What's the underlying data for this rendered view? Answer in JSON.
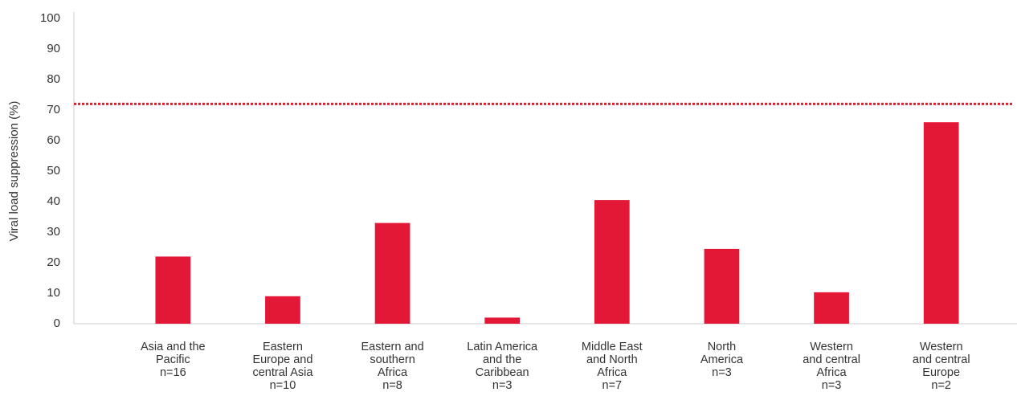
{
  "chart_data": {
    "type": "bar",
    "y_label": "Viral load suppression (%)",
    "categories": [
      [
        "Asia and the",
        "Pacific",
        "n=16"
      ],
      [
        "Eastern",
        "Europe and",
        "central Asia",
        "n=10"
      ],
      [
        "Eastern and",
        "southern",
        "Africa",
        "n=8"
      ],
      [
        "Latin America",
        "and the",
        "Caribbean",
        "n=3"
      ],
      [
        "Middle East",
        "and North",
        "Africa",
        "n=7"
      ],
      [
        "North",
        "America",
        "n=3"
      ],
      [
        "Western",
        "and central",
        "Africa",
        "n=3"
      ],
      [
        "Western",
        "and central",
        "Europe",
        "n=2"
      ]
    ],
    "values": [
      22,
      9,
      33,
      2,
      40.5,
      24.5,
      10.3,
      66
    ],
    "color": "#e31837",
    "ylim": [
      0,
      100
    ],
    "yticks": [
      0,
      10,
      20,
      30,
      40,
      50,
      60,
      70,
      80,
      90,
      100
    ],
    "grid": false,
    "reference_line": {
      "value": 72,
      "color": "#e0202f",
      "style": "dotted"
    }
  }
}
